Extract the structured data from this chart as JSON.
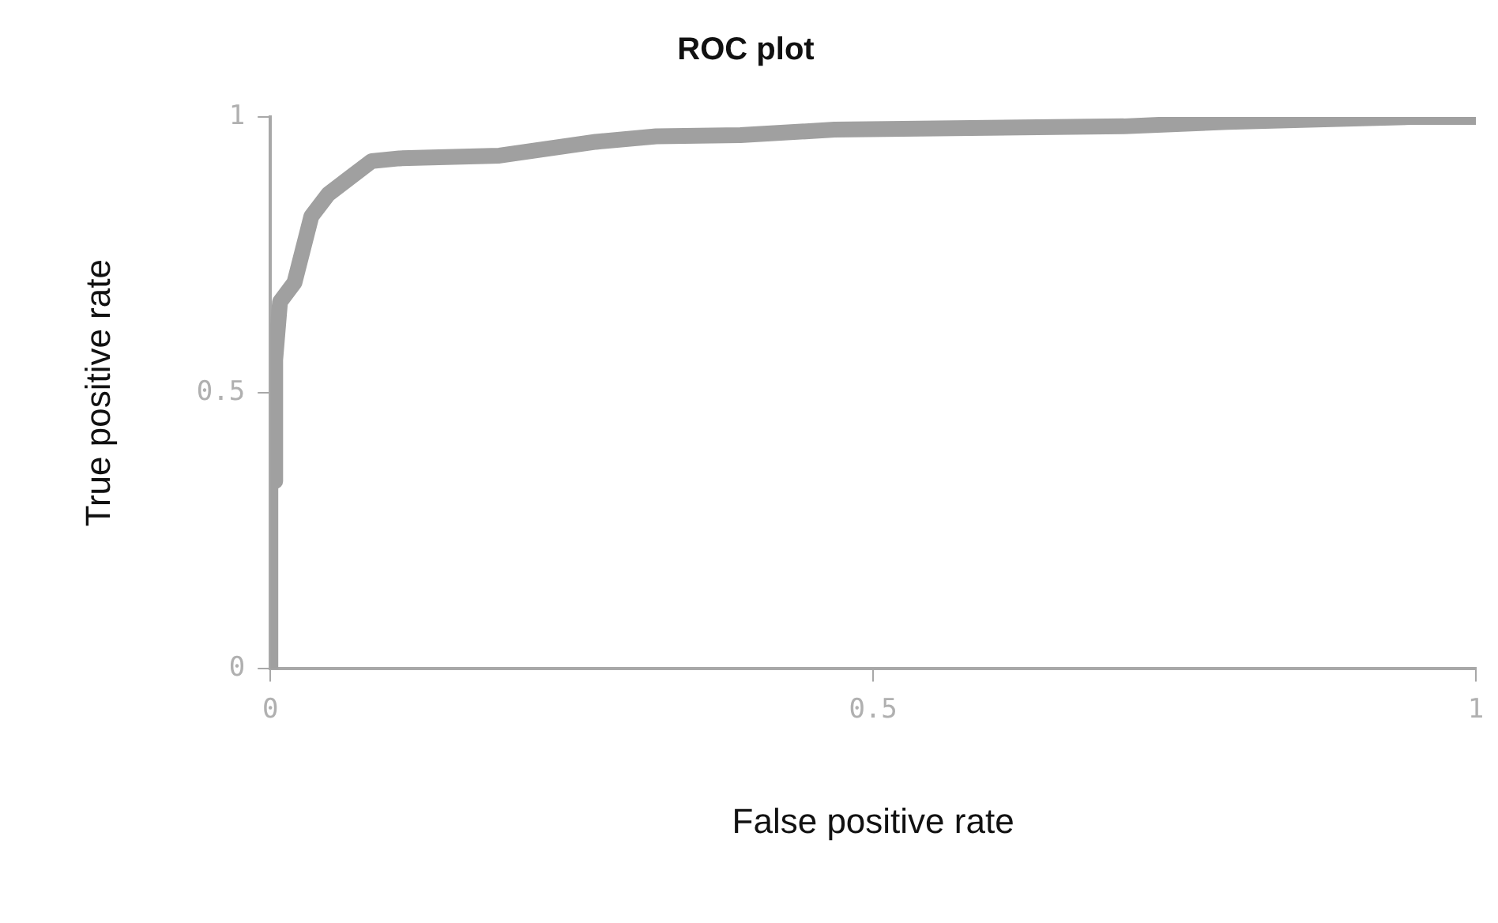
{
  "chart_data": {
    "type": "line",
    "title": "ROC plot",
    "xlabel": "False positive rate",
    "ylabel": "True positive rate",
    "x": [
      0,
      0,
      0.004,
      0.004,
      0.008,
      0.02,
      0.034,
      0.048,
      0.066,
      0.084,
      0.107,
      0.19,
      0.27,
      0.32,
      0.39,
      0.468,
      0.708,
      0.794,
      0.946,
      1
    ],
    "series": [
      {
        "color": "#a0a0a0",
        "values": [
          0,
          0.34,
          0.34,
          0.56,
          0.665,
          0.7,
          0.82,
          0.86,
          0.89,
          0.92,
          0.925,
          0.93,
          0.955,
          0.965,
          0.967,
          0.977,
          0.983,
          0.991,
          1.0,
          1.0
        ]
      }
    ],
    "xlim": [
      0,
      1
    ],
    "ylim": [
      0,
      1
    ],
    "xticks": [
      0,
      0.5,
      1
    ],
    "yticks": [
      0,
      0.5,
      1
    ],
    "grid": false,
    "legend": false,
    "marker": "none",
    "line_style": "solid"
  }
}
